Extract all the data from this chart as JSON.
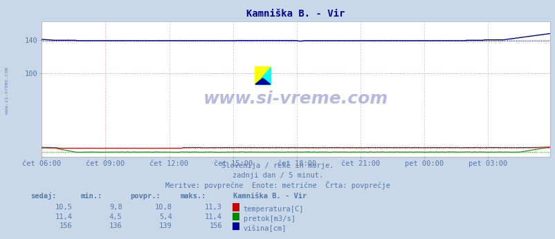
{
  "title": "Kamniška B. - Vir",
  "title_color": "#000099",
  "bg_color": "#c8d8e8",
  "plot_bg_color": "#ffffff",
  "grid_color_v": "#ffbbbb",
  "grid_color_h": "#bbbbff",
  "x_labels": [
    "čet 06:00",
    "čet 09:00",
    "čet 12:00",
    "čet 15:00",
    "čet 18:00",
    "čet 21:00",
    "pet 00:00",
    "pet 03:00"
  ],
  "x_tick_pos": [
    0,
    36,
    72,
    108,
    144,
    180,
    216,
    252
  ],
  "n_points": 288,
  "y_ticks": [
    100,
    140
  ],
  "temperatura_color": "#cc0000",
  "pretok_color": "#008800",
  "visina_color": "#000099",
  "temperatura_avg": 10.8,
  "pretok_avg": 5.4,
  "visina_avg": 139,
  "text_color": "#5577aa",
  "watermark": "www.si-vreme.com",
  "subtitle1": "Slovenija / reke in morje.",
  "subtitle2": "zadnji dan / 5 minut.",
  "subtitle3": "Meritve: povprečne  Enote: metrične  Črta: povprečje",
  "legend_title": "Kamniška B. - Vir",
  "legend_items": [
    {
      "label": "temperatura[C]",
      "color": "#cc0000"
    },
    {
      "label": "pretok[m3/s]",
      "color": "#008800"
    },
    {
      "label": "višina[cm]",
      "color": "#000099"
    }
  ],
  "table_headers": [
    "sedaj:",
    "min.:",
    "povpr.:",
    "maks.:"
  ],
  "table_data": [
    [
      "10,5",
      "9,8",
      "10,8",
      "11,3"
    ],
    [
      "11,4",
      "4,5",
      "5,4",
      "11,4"
    ],
    [
      "156",
      "136",
      "139",
      "156"
    ]
  ],
  "ylim_max": 162
}
